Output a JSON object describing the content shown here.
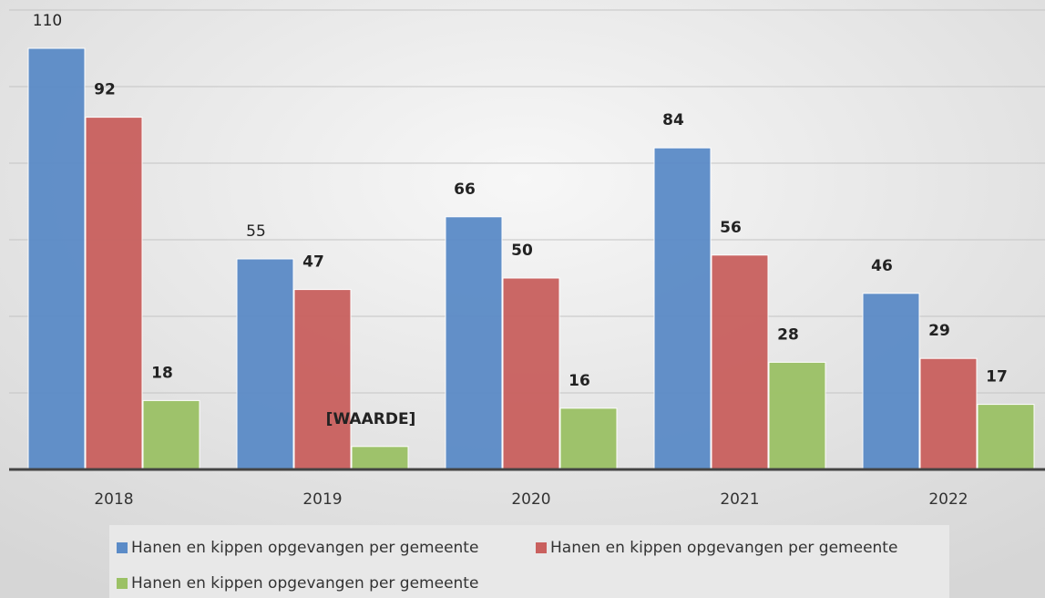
{
  "chart_data": {
    "type": "bar",
    "categories": [
      "2018",
      "2019",
      "2020",
      "2021",
      "2022"
    ],
    "series": [
      {
        "name": "Hanen en kippen opgevangen per gemeente",
        "color": "#5b8bc7",
        "values": [
          110,
          55,
          66,
          84,
          46
        ]
      },
      {
        "name": "Hanen en kippen opgevangen per gemeente",
        "color": "#c9605e",
        "values": [
          92,
          47,
          50,
          56,
          29
        ]
      },
      {
        "name": "Hanen en kippen opgevangen per gemeente",
        "color": "#9bc165",
        "values": [
          18,
          6,
          16,
          28,
          17
        ],
        "value_labels": [
          "18",
          "[WAARDE]",
          "16",
          "28",
          "17"
        ]
      }
    ],
    "ylim": [
      0,
      120
    ],
    "yticks": [
      0,
      20,
      40,
      60,
      80,
      100,
      120
    ],
    "grid": true
  }
}
